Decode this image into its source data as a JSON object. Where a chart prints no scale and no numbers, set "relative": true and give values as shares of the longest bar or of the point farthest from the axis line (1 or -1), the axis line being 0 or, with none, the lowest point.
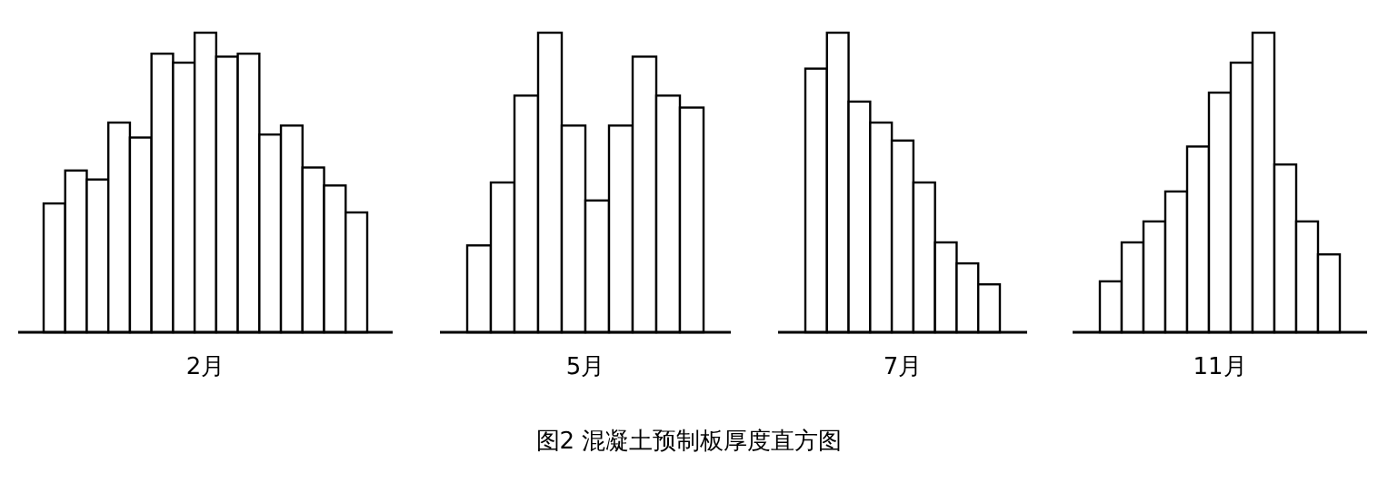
{
  "chart_data": [
    {
      "type": "bar",
      "relative": true,
      "xlabel": "2月",
      "categories": [
        null,
        null,
        null,
        null,
        null,
        null,
        null,
        null,
        null,
        null,
        null,
        null,
        null,
        null,
        null
      ],
      "values": [
        0.43,
        0.54,
        0.51,
        0.7,
        0.65,
        0.93,
        0.9,
        1,
        0.92,
        0.93,
        0.66,
        0.69,
        0.55,
        0.49,
        0.4
      ],
      "color": "#ffffff",
      "annotations": [
        "图2 混凝土预制板厚度直方图"
      ]
    },
    {
      "type": "bar",
      "relative": true,
      "xlabel": "5月",
      "categories": [
        null,
        null,
        null,
        null,
        null,
        null,
        null,
        null,
        null,
        null
      ],
      "values": [
        0.29,
        0.5,
        0.79,
        1,
        0.69,
        0.44,
        0.69,
        0.92,
        0.79,
        0.75
      ],
      "color": "#ffffff"
    },
    {
      "type": "bar",
      "relative": true,
      "xlabel": "7月",
      "categories": [
        null,
        null,
        null,
        null,
        null,
        null,
        null,
        null,
        null
      ],
      "values": [
        0.88,
        1,
        0.77,
        0.7,
        0.64,
        0.5,
        0.3,
        0.23,
        0.16
      ],
      "color": "#ffffff"
    },
    {
      "type": "bar",
      "relative": true,
      "xlabel": "11月",
      "categories": [
        null,
        null,
        null,
        null,
        null,
        null,
        null,
        null,
        null,
        null,
        null
      ],
      "values": [
        0.17,
        0.3,
        0.37,
        0.47,
        0.62,
        0.8,
        0.9,
        1,
        0.56,
        0.37,
        0.26
      ],
      "color": "#ffffff"
    }
  ]
}
